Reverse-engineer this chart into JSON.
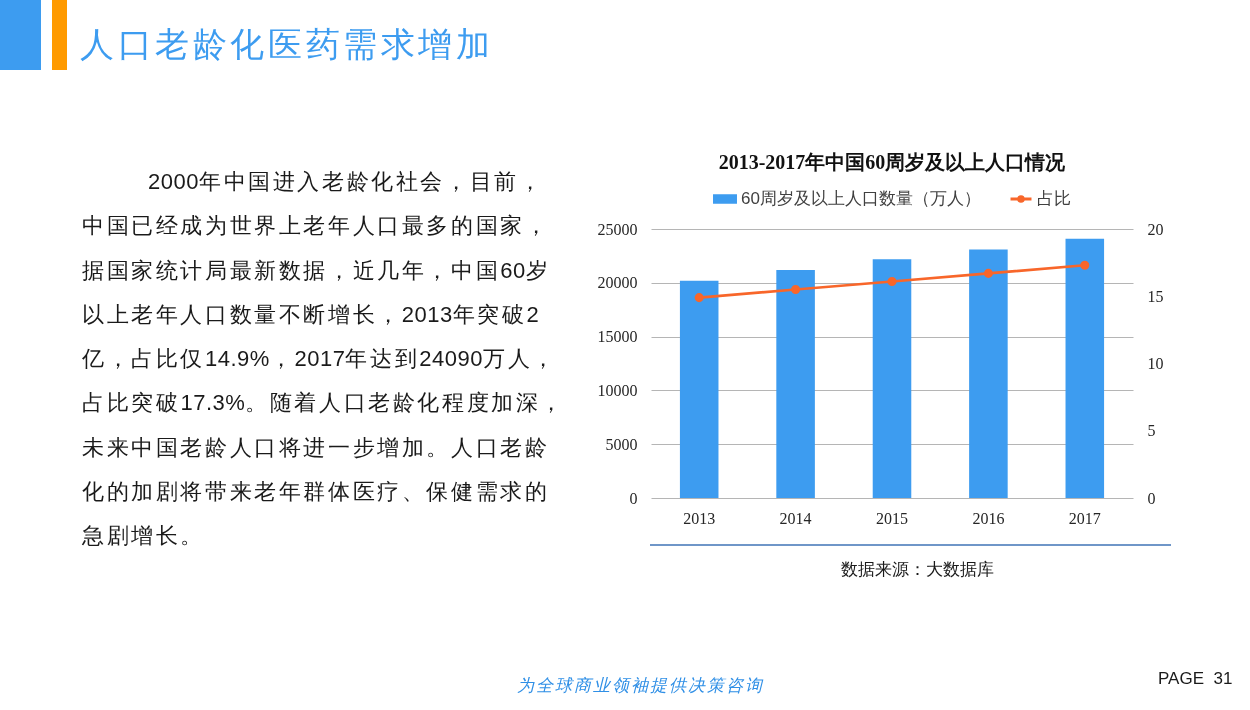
{
  "chart_data": {
    "type": "bar",
    "title": "2013-2017年中国60周岁及以上人口情况",
    "categories": [
      "2013",
      "2014",
      "2015",
      "2016",
      "2017"
    ],
    "series": [
      {
        "name": "60周岁及以上人口数量（万人）",
        "color": "#3d9cf0",
        "values": [
          20200,
          21200,
          22200,
          23100,
          24100
        ]
      },
      {
        "name": "占比",
        "type": "line",
        "axis": "y2",
        "color": "#f8662a",
        "values": [
          14.9,
          15.5,
          16.1,
          16.7,
          17.3
        ]
      }
    ],
    "ylim": [
      0,
      25000
    ],
    "yticks": [
      0,
      5000,
      10000,
      15000,
      20000,
      25000
    ],
    "y2lim": [
      0,
      20
    ],
    "y2ticks": [
      0,
      5,
      10,
      15,
      20
    ],
    "grid": "y",
    "legend": "top",
    "marker": "circle",
    "annotations": [
      "人口老龄化医药需求增加",
      "2000年中国进入老龄化社会，目前，中国已经成为世界上老年人口最多的国家，据国家统计局最新数据，近几年，中国60岁以上老年人口数量不断增长，2013年突破2亿，占比仅14.9%，2017年达到24090万人，占比突破17.3%。随着人口老龄化程度加深，未来中国老龄人口将进一步增加。人口老龄化的加剧将带来老年群体医疗、保健需求的急剧增长。",
      "数据来源：大数据库",
      "为全球商业领袖提供决策咨询",
      "PAGE  31"
    ]
  }
}
